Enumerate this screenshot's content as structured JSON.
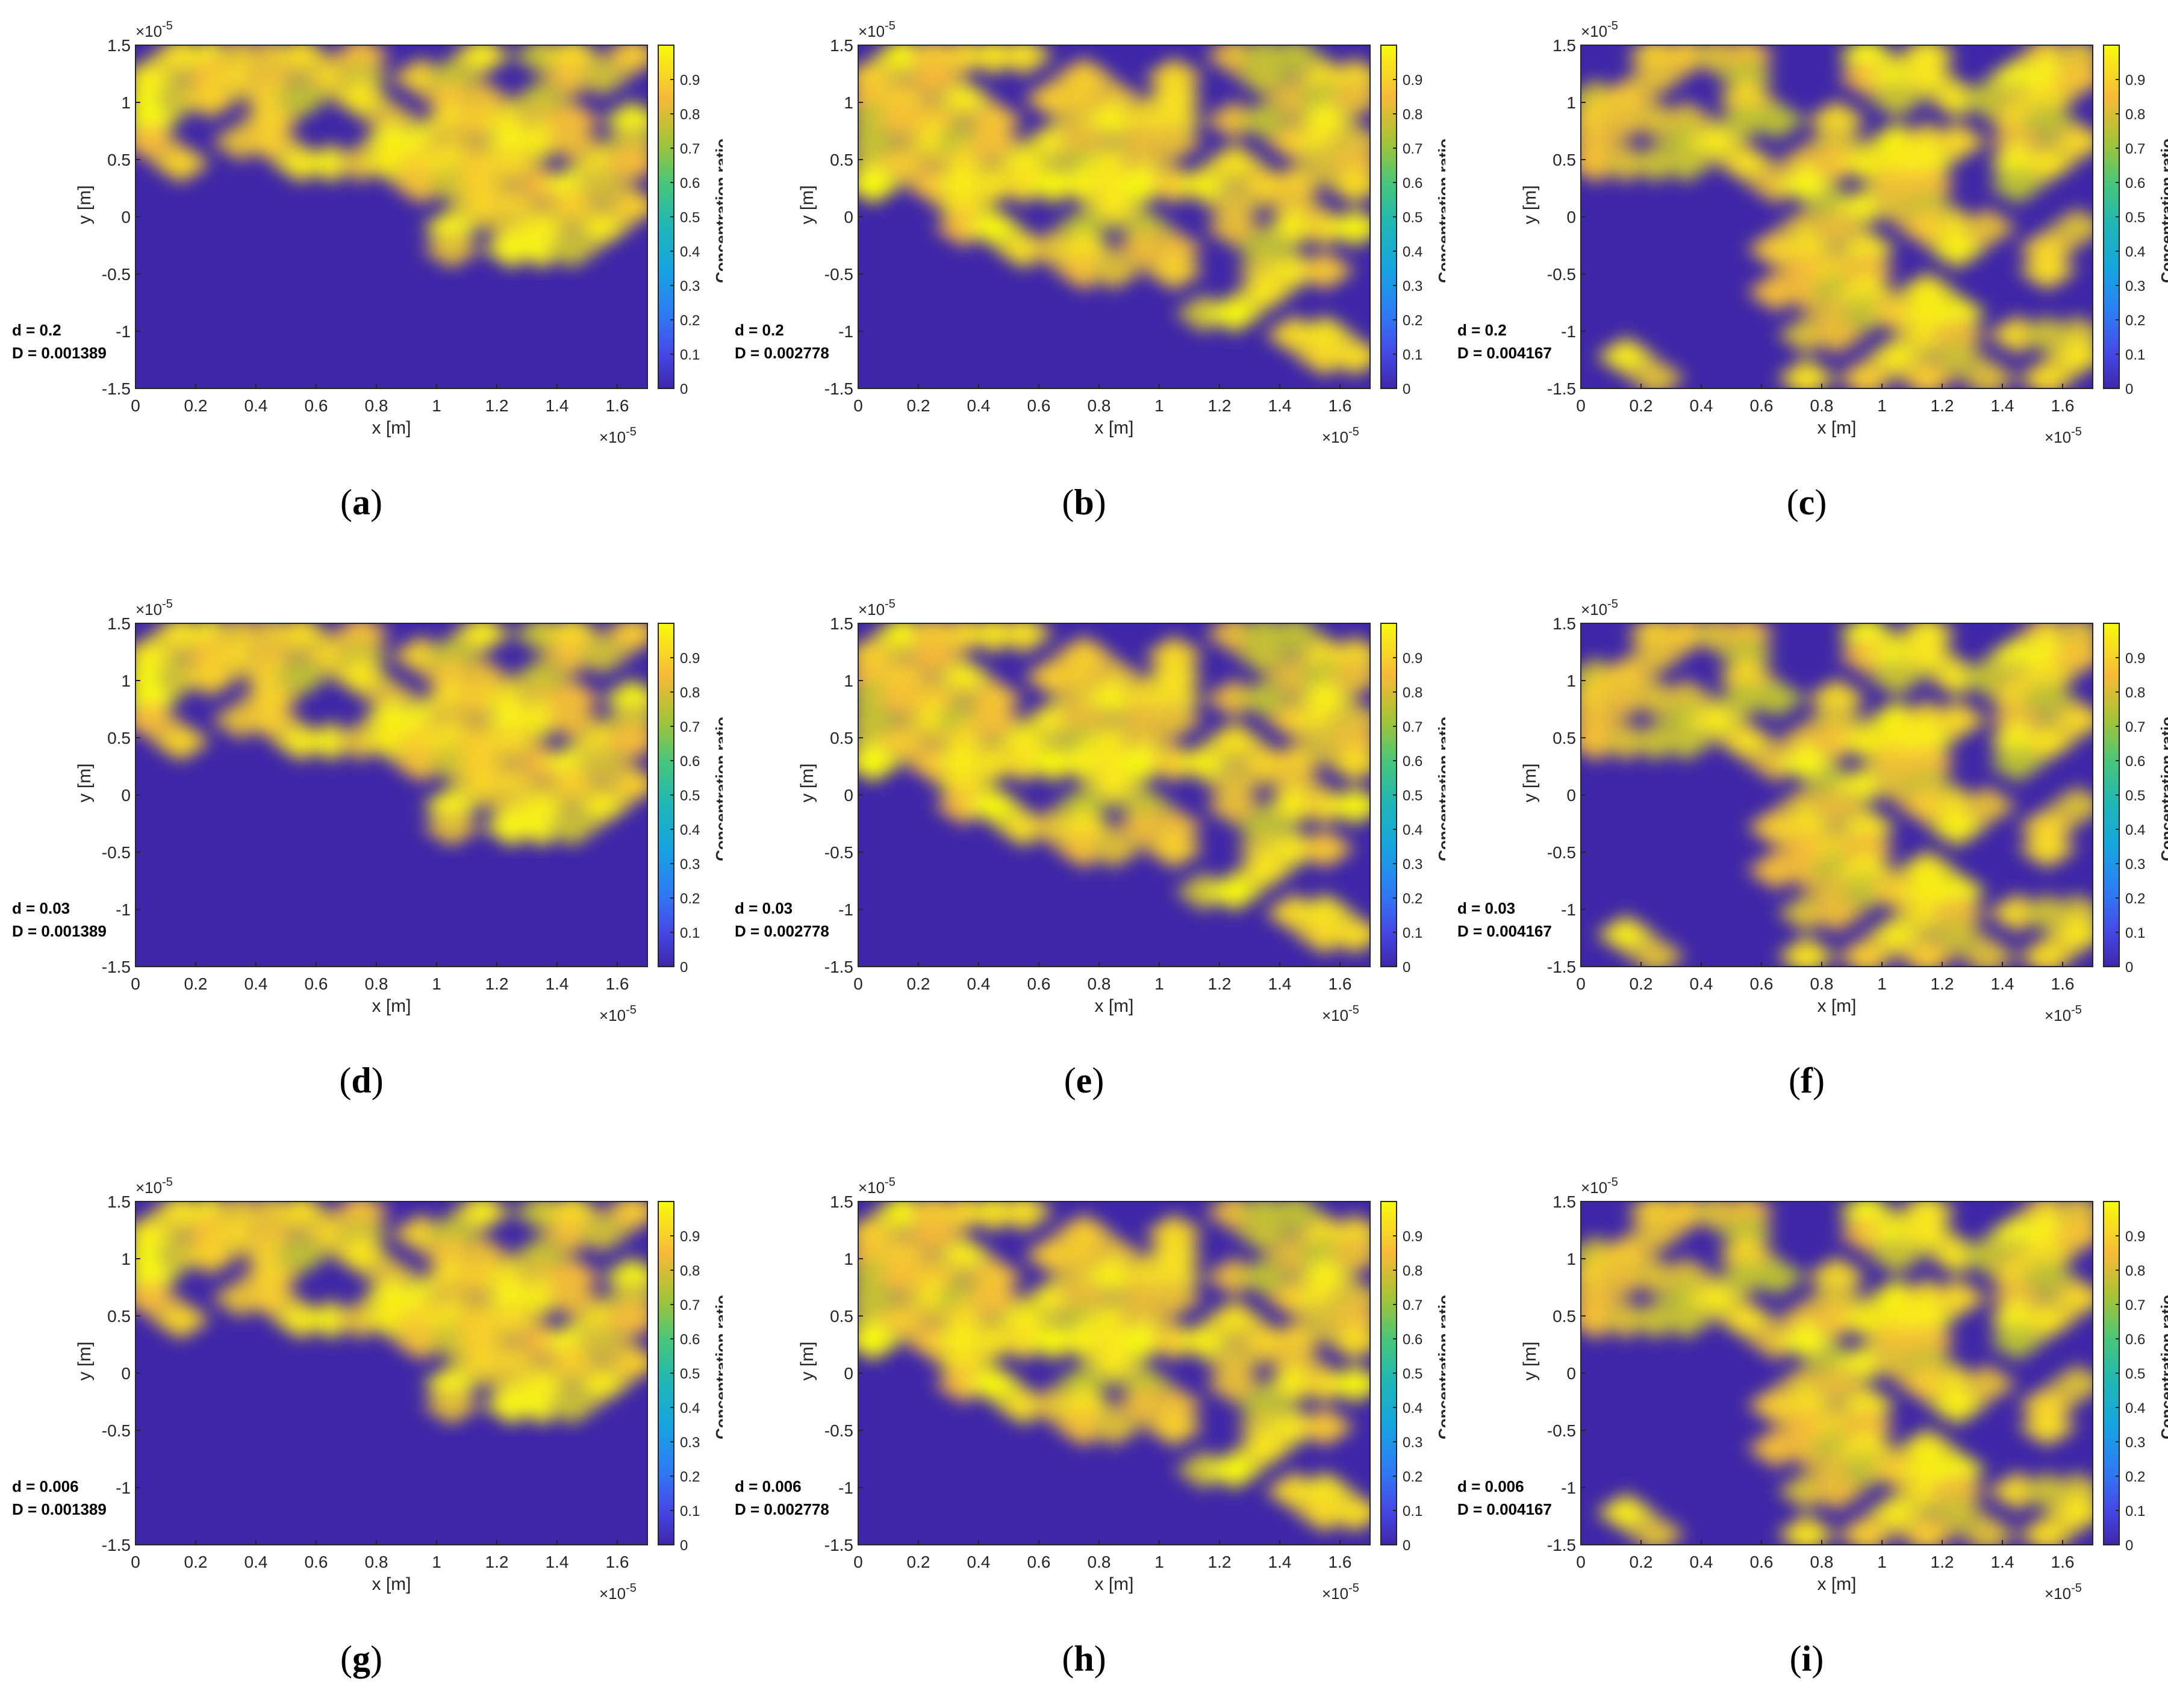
{
  "figure": {
    "colorbar": {
      "label": "Concentration ratio",
      "ticks": [
        "0",
        "0.1",
        "0.2",
        "0.3",
        "0.4",
        "0.5",
        "0.6",
        "0.7",
        "0.8",
        "0.9"
      ],
      "range": [
        0,
        1
      ],
      "colormap": "parula"
    },
    "colors": {
      "low": "#3e26a8",
      "mid": "#1fb8b5",
      "high": "#f9fb0e"
    },
    "axes": {
      "xlabel": "x [m]",
      "ylabel": "y [m]",
      "xticks": [
        "0",
        "0.2",
        "0.4",
        "0.6",
        "0.8",
        "1",
        "1.2",
        "1.4",
        "1.6"
      ],
      "yticks": [
        "1.5",
        "1",
        "0.5",
        "0",
        "-0.5",
        "-1",
        "-1.5"
      ],
      "x_exponent": "×10",
      "x_exponent_power": "-5",
      "y_exponent": "×10",
      "y_exponent_power": "-5"
    }
  },
  "chart_data": [
    {
      "type": "heatmap",
      "caption": "a",
      "d_label": "d = 0.2",
      "D_label": "D = 0.001389",
      "pattern": 0,
      "xlim": [
        0,
        1.7
      ],
      "ylim": [
        -1.5,
        1.5
      ],
      "colorbar_range": [
        0,
        1
      ],
      "scale": "1e-5"
    },
    {
      "type": "heatmap",
      "caption": "b",
      "d_label": "d = 0.2",
      "D_label": "D = 0.002778",
      "pattern": 1,
      "xlim": [
        0,
        1.7
      ],
      "ylim": [
        -1.5,
        1.5
      ],
      "colorbar_range": [
        0,
        1
      ],
      "scale": "1e-5"
    },
    {
      "type": "heatmap",
      "caption": "c",
      "d_label": "d = 0.2",
      "D_label": "D = 0.004167",
      "pattern": 2,
      "xlim": [
        0,
        1.7
      ],
      "ylim": [
        -1.5,
        1.5
      ],
      "colorbar_range": [
        0,
        1
      ],
      "scale": "1e-5"
    },
    {
      "type": "heatmap",
      "caption": "d",
      "d_label": "d = 0.03",
      "D_label": "D = 0.001389",
      "pattern": 0,
      "xlim": [
        0,
        1.7
      ],
      "ylim": [
        -1.5,
        1.5
      ],
      "colorbar_range": [
        0,
        1
      ],
      "scale": "1e-5"
    },
    {
      "type": "heatmap",
      "caption": "e",
      "d_label": "d = 0.03",
      "D_label": "D = 0.002778",
      "pattern": 1,
      "xlim": [
        0,
        1.7
      ],
      "ylim": [
        -1.5,
        1.5
      ],
      "colorbar_range": [
        0,
        1
      ],
      "scale": "1e-5"
    },
    {
      "type": "heatmap",
      "caption": "f",
      "d_label": "d = 0.03",
      "D_label": "D = 0.004167",
      "pattern": 2,
      "xlim": [
        0,
        1.7
      ],
      "ylim": [
        -1.5,
        1.5
      ],
      "colorbar_range": [
        0,
        1
      ],
      "scale": "1e-5"
    },
    {
      "type": "heatmap",
      "caption": "g",
      "d_label": "d = 0.006",
      "D_label": "D = 0.001389",
      "pattern": 0,
      "xlim": [
        0,
        1.7
      ],
      "ylim": [
        -1.5,
        1.5
      ],
      "colorbar_range": [
        0,
        1
      ],
      "scale": "1e-5"
    },
    {
      "type": "heatmap",
      "caption": "h",
      "d_label": "d = 0.006",
      "D_label": "D = 0.002778",
      "pattern": 1,
      "xlim": [
        0,
        1.7
      ],
      "ylim": [
        -1.5,
        1.5
      ],
      "colorbar_range": [
        0,
        1
      ],
      "scale": "1e-5"
    },
    {
      "type": "heatmap",
      "caption": "i",
      "d_label": "d = 0.006",
      "D_label": "D = 0.004167",
      "pattern": 2,
      "xlim": [
        0,
        1.7
      ],
      "ylim": [
        -1.5,
        1.5
      ],
      "colorbar_range": [
        0,
        1
      ],
      "scale": "1e-5"
    }
  ]
}
